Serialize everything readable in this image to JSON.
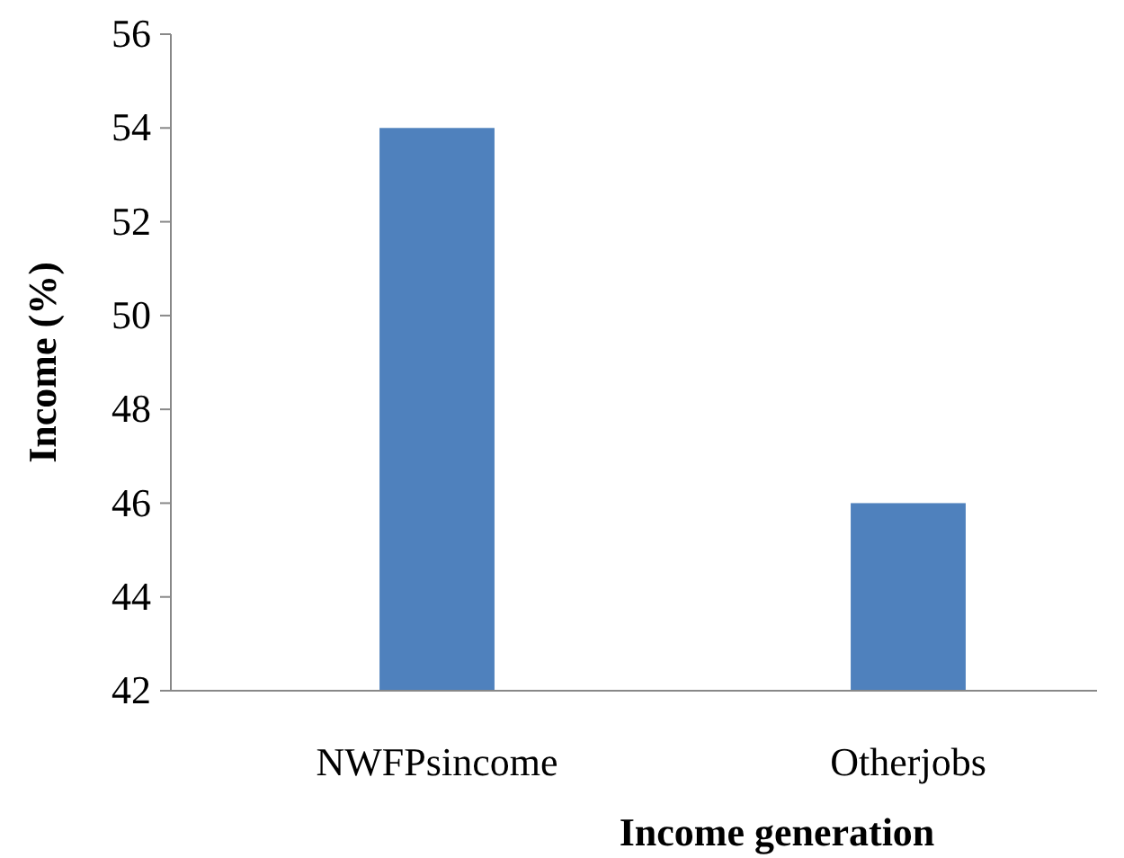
{
  "chart_data": {
    "type": "bar",
    "xlabel": "Income generation",
    "ylabel": "Income (%)",
    "categories": [
      "NWFPsincome",
      "Otherjobs"
    ],
    "values": [
      54,
      46
    ],
    "color": "#4f81bd",
    "ylim": [
      42,
      56
    ],
    "yticks": [
      42,
      44,
      46,
      48,
      50,
      52,
      54,
      56
    ],
    "grid": false
  }
}
